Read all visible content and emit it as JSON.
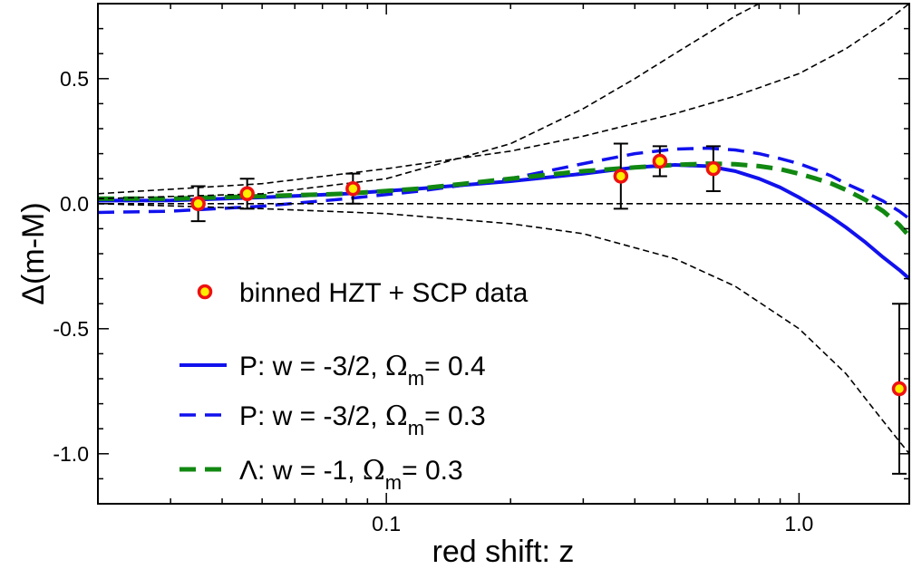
{
  "chart_data": {
    "type": "scatter",
    "xlabel": "red shift: z",
    "ylabel": "Δ(m-M)",
    "xscale": "log",
    "xlim": [
      0.02,
      1.85
    ],
    "ylim": [
      -1.2,
      0.8
    ],
    "x_ticks": [
      {
        "value": 0.1,
        "label": "0.1"
      },
      {
        "value": 1.0,
        "label": "1.0"
      }
    ],
    "y_ticks": [
      {
        "value": 0.5,
        "label": "0.5"
      },
      {
        "value": 0.0,
        "label": "0.0"
      },
      {
        "value": -0.5,
        "label": "-0.5"
      },
      {
        "value": -1.0,
        "label": "-1.0"
      }
    ],
    "grid": false,
    "legend_position": "lower-left",
    "series": [
      {
        "name": "binned HZT + SCP data",
        "kind": "points",
        "marker_fill": "#ffee00",
        "marker_edge": "#ee1111",
        "points": [
          {
            "x": 0.035,
            "y": 0.0,
            "err": 0.07
          },
          {
            "x": 0.046,
            "y": 0.04,
            "err": 0.06
          },
          {
            "x": 0.083,
            "y": 0.06,
            "err": 0.06
          },
          {
            "x": 0.37,
            "y": 0.11,
            "err": 0.13
          },
          {
            "x": 0.46,
            "y": 0.17,
            "err": 0.06
          },
          {
            "x": 0.62,
            "y": 0.14,
            "err": 0.09
          },
          {
            "x": 1.75,
            "y": -0.74,
            "err": 0.34
          }
        ]
      },
      {
        "name": "P: w = -3/2, Ωm= 0.4",
        "legend_parts": {
          "prefix": "P: w = -3/2, ",
          "symbol": "Ω",
          "sub": "m",
          "suffix": "= 0.4"
        },
        "kind": "curve",
        "color": "#1111ee",
        "style": "solid",
        "x": [
          0.02,
          0.03,
          0.05,
          0.08,
          0.12,
          0.2,
          0.3,
          0.4,
          0.5,
          0.6,
          0.7,
          0.8,
          0.9,
          1.0,
          1.1,
          1.2,
          1.3,
          1.45,
          1.6,
          1.75,
          1.85
        ],
        "y": [
          0.012,
          0.013,
          0.025,
          0.04,
          0.06,
          0.09,
          0.12,
          0.145,
          0.155,
          0.15,
          0.13,
          0.1,
          0.065,
          0.025,
          -0.015,
          -0.055,
          -0.095,
          -0.155,
          -0.215,
          -0.265,
          -0.3
        ]
      },
      {
        "name": "P: w = -3/2, Ωm= 0.3",
        "legend_parts": {
          "prefix": "P: w = -3/2, ",
          "symbol": "Ω",
          "sub": "m",
          "suffix": "= 0.3"
        },
        "kind": "curve",
        "color": "#1111ee",
        "style": "dashed",
        "x": [
          0.02,
          0.03,
          0.05,
          0.08,
          0.12,
          0.2,
          0.3,
          0.4,
          0.5,
          0.6,
          0.7,
          0.8,
          0.9,
          1.0,
          1.1,
          1.2,
          1.3,
          1.45,
          1.6,
          1.75,
          1.85
        ],
        "y": [
          -0.035,
          -0.03,
          -0.01,
          0.02,
          0.05,
          0.1,
          0.16,
          0.2,
          0.218,
          0.222,
          0.215,
          0.2,
          0.18,
          0.16,
          0.135,
          0.11,
          0.08,
          0.045,
          0.01,
          -0.03,
          -0.06
        ]
      },
      {
        "name": "Λ: w = -1,  Ωm= 0.3",
        "legend_parts": {
          "prefix": "Λ: w = -1,  ",
          "symbol": "Ω",
          "sub": "m",
          "suffix": "= 0.3"
        },
        "kind": "curve",
        "color": "#118811",
        "style": "dashed",
        "x": [
          0.02,
          0.03,
          0.05,
          0.08,
          0.12,
          0.2,
          0.3,
          0.4,
          0.5,
          0.6,
          0.7,
          0.8,
          0.9,
          1.0,
          1.1,
          1.2,
          1.3,
          1.45,
          1.6,
          1.75,
          1.85
        ],
        "y": [
          0.02,
          0.02,
          0.03,
          0.04,
          0.06,
          0.1,
          0.13,
          0.145,
          0.155,
          0.16,
          0.158,
          0.15,
          0.138,
          0.12,
          0.1,
          0.08,
          0.055,
          0.015,
          -0.03,
          -0.085,
          -0.13
        ]
      },
      {
        "kind": "curve",
        "color": "#000000",
        "style": "thin-dashed",
        "x": [
          0.02,
          0.05,
          0.1,
          0.2,
          0.3,
          0.4,
          0.5,
          0.6,
          0.7,
          0.8,
          0.9,
          1.0,
          1.2
        ],
        "y": [
          0.02,
          0.04,
          0.1,
          0.24,
          0.38,
          0.5,
          0.6,
          0.68,
          0.75,
          0.8,
          0.85,
          0.9,
          0.96
        ]
      },
      {
        "kind": "curve",
        "color": "#000000",
        "style": "thin-dashed",
        "x": [
          0.02,
          0.05,
          0.1,
          0.2,
          0.3,
          0.5,
          0.7,
          1.0,
          1.3,
          1.6,
          1.85
        ],
        "y": [
          0.04,
          0.08,
          0.14,
          0.21,
          0.27,
          0.36,
          0.43,
          0.52,
          0.62,
          0.72,
          0.8
        ]
      },
      {
        "kind": "curve",
        "color": "#000000",
        "style": "thin-dashed",
        "x": [
          0.02,
          1.85
        ],
        "y": [
          0.0,
          0.0
        ]
      },
      {
        "kind": "curve",
        "color": "#000000",
        "style": "thin-dashed",
        "x": [
          0.02,
          0.05,
          0.1,
          0.2,
          0.3,
          0.5,
          0.7,
          1.0,
          1.3,
          1.6,
          1.85
        ],
        "y": [
          0.0,
          -0.02,
          -0.04,
          -0.08,
          -0.12,
          -0.22,
          -0.33,
          -0.5,
          -0.68,
          -0.87,
          -1.0
        ]
      }
    ]
  }
}
